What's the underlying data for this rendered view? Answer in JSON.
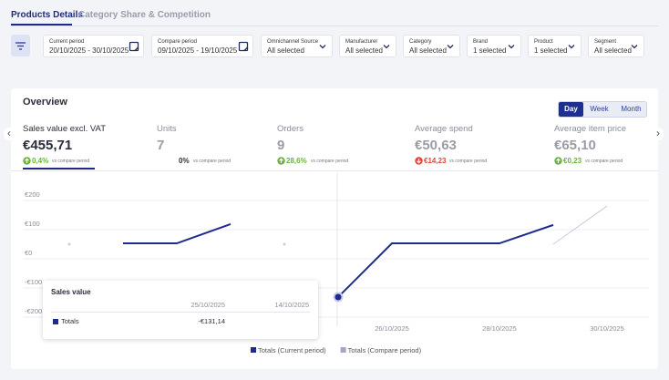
{
  "tabs": [
    "Products Details",
    "Category Share & Competition"
  ],
  "filters": [
    {
      "label": "Current period",
      "value": "20/10/2025 - 30/10/2025"
    },
    {
      "label": "Compare period",
      "value": "09/10/2025 - 19/10/2025"
    },
    {
      "label": "Omnichannel Source",
      "value": "All selected"
    },
    {
      "label": "Manufacturer",
      "value": "All selected"
    },
    {
      "label": "Category",
      "value": "All selected"
    },
    {
      "label": "Brand",
      "value": "1 selected"
    },
    {
      "label": "Product",
      "value": "1 selected"
    },
    {
      "label": "Segment",
      "value": "All selected"
    }
  ],
  "overview": {
    "title": "Overview",
    "periods": [
      "Day",
      "Week",
      "Month"
    ],
    "metrics": [
      {
        "name": "Sales value excl. VAT",
        "value": "€455,71",
        "change": "0,4%",
        "trend": "up",
        "note": "vs compare period"
      },
      {
        "name": "Units",
        "value": "7",
        "change": "0%",
        "trend": "none",
        "note": "vs compare period"
      },
      {
        "name": "Orders",
        "value": "9",
        "change": "28,6%",
        "trend": "up",
        "note": "vs compare period"
      },
      {
        "name": "Average spend",
        "value": "€50,63",
        "change": "€14,23",
        "trend": "down",
        "note": "vs compare period"
      },
      {
        "name": "Average item price",
        "value": "€65,10",
        "change": "€0,23",
        "trend": "up",
        "note": "vs compare period"
      }
    ]
  },
  "chart_data": {
    "type": "line",
    "categories": [
      null,
      null,
      null,
      null,
      null,
      null,
      "26/10/2025",
      null,
      "28/10/2025",
      null,
      "30/10/2025"
    ],
    "series": [
      {
        "name": "Totals (Current period)",
        "color": "#1f2b8c",
        "values": [
          null,
          53,
          53,
          119,
          null,
          -131.14,
          53,
          53,
          53,
          116,
          null
        ]
      },
      {
        "name": "Totals (Compare period)",
        "color": "#a3a6c6",
        "values": [
          50,
          null,
          null,
          null,
          50,
          null,
          null,
          null,
          null,
          50,
          181
        ]
      }
    ],
    "ylim": [
      -200,
      200
    ],
    "yticks": [
      {
        "value": 200,
        "label": "€200"
      },
      {
        "value": 100,
        "label": "€100"
      },
      {
        "value": 0,
        "label": "€0"
      },
      {
        "value": -100,
        "label": "-€100"
      },
      {
        "value": -200,
        "label": "-€200"
      }
    ],
    "grid": true,
    "tooltip": {
      "title": "Sales value",
      "columns": [
        "25/10/2025",
        "14/10/2025"
      ],
      "row": "Totals",
      "value": "-€131,14"
    }
  }
}
